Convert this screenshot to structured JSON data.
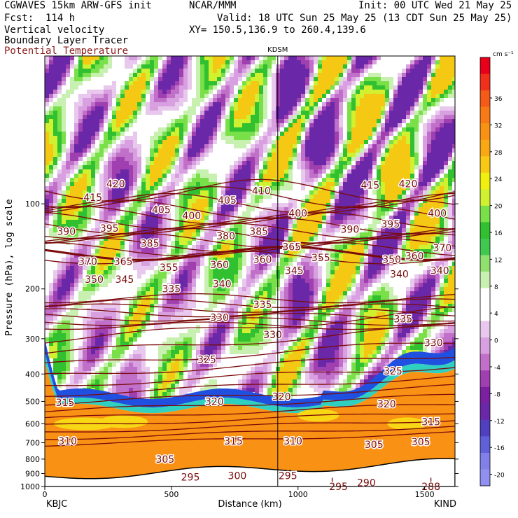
{
  "header": {
    "line1_left": "CGWAVES 15km ARW-GFS init",
    "line1_mid": "NCAR/MMM",
    "line1_right": "Init: 00 UTC Wed 21 May 25",
    "line2_left": "Fcst:  114 h",
    "line2_right": "Valid: 18 UTC Sun 25 May 25 (13 CDT Sun 25 May 25)",
    "line3_left": "Vertical velocity",
    "line3_right": "XY= 150.5,136.9 to 260.4,139.6",
    "line4_left": "Boundary Layer Tracer",
    "line5_left": "Potential Temperature"
  },
  "colors": {
    "potential_temperature": "#7a0a0a",
    "title_red": "#8b1a1a"
  },
  "chart_data": {
    "type": "heatmap",
    "title": "KDSM",
    "ylabel": "Pressure (hPa), log scale",
    "xlabel": "Distance (km)",
    "y_scale": "log",
    "ylim": [
      1000,
      30
    ],
    "xlim": [
      0,
      1620
    ],
    "x_ticks": [
      0,
      500,
      1000,
      1500
    ],
    "x_tick_labels": [
      "0",
      "500",
      "1000",
      "1500"
    ],
    "y_ticks": [
      100,
      200,
      300,
      400,
      500,
      600,
      700,
      800,
      900,
      1000
    ],
    "y_tick_labels": [
      "100",
      "200",
      "300",
      "400",
      "500",
      "600",
      "700",
      "800",
      "900",
      "1000"
    ],
    "endpoints": {
      "left": "KBJC",
      "right": "KIND"
    },
    "marker_station": {
      "name": "KDSM",
      "distance_km": 920
    },
    "colorbar": {
      "units": "cm s⁻¹",
      "tick_labels": [
        "36",
        "32",
        "28",
        "24",
        "20",
        "16",
        "12",
        "8",
        "4",
        "0",
        "-4",
        "-8",
        "-12",
        "-16",
        "-20"
      ],
      "colors": [
        "#e8001a",
        "#f0301a",
        "#f55a18",
        "#f77a16",
        "#f99214",
        "#f9a814",
        "#f8c814",
        "#f0f010",
        "#d0f030",
        "#7ae04a",
        "#30c030",
        "#40c850",
        "#90e070",
        "#c8f0b0",
        "#ffffff",
        "#ffffff",
        "#e8c8ec",
        "#d8a0e0",
        "#c070c8",
        "#a040b0",
        "#7a20a0",
        "#6a28a8",
        "#5040c0",
        "#6060d8",
        "#8080e8",
        "#9090f0"
      ]
    },
    "theta_contour_labels": [
      {
        "v": "420",
        "x": 280,
        "p": 85
      },
      {
        "v": "415",
        "x": 190,
        "p": 95
      },
      {
        "v": "405",
        "x": 460,
        "p": 105
      },
      {
        "v": "400",
        "x": 580,
        "p": 110
      },
      {
        "v": "405",
        "x": 720,
        "p": 97
      },
      {
        "v": "410",
        "x": 855,
        "p": 90
      },
      {
        "v": "415",
        "x": 1285,
        "p": 86
      },
      {
        "v": "420",
        "x": 1435,
        "p": 85
      },
      {
        "v": "400",
        "x": 1550,
        "p": 108
      },
      {
        "v": "395",
        "x": 1365,
        "p": 118
      },
      {
        "v": "390",
        "x": 1205,
        "p": 123
      },
      {
        "v": "400",
        "x": 1000,
        "p": 108
      },
      {
        "v": "390",
        "x": 85,
        "p": 125
      },
      {
        "v": "395",
        "x": 255,
        "p": 122
      },
      {
        "v": "385",
        "x": 415,
        "p": 138
      },
      {
        "v": "380",
        "x": 715,
        "p": 130
      },
      {
        "v": "385",
        "x": 845,
        "p": 125
      },
      {
        "v": "365",
        "x": 975,
        "p": 142
      },
      {
        "v": "370",
        "x": 1570,
        "p": 143
      },
      {
        "v": "370",
        "x": 170,
        "p": 160
      },
      {
        "v": "365",
        "x": 310,
        "p": 160
      },
      {
        "v": "355",
        "x": 490,
        "p": 168
      },
      {
        "v": "360",
        "x": 690,
        "p": 164
      },
      {
        "v": "360",
        "x": 860,
        "p": 157
      },
      {
        "v": "355",
        "x": 1090,
        "p": 155
      },
      {
        "v": "350",
        "x": 1370,
        "p": 157
      },
      {
        "v": "360",
        "x": 1460,
        "p": 153
      },
      {
        "v": "350",
        "x": 195,
        "p": 185
      },
      {
        "v": "345",
        "x": 315,
        "p": 185
      },
      {
        "v": "345",
        "x": 985,
        "p": 172
      },
      {
        "v": "340",
        "x": 1400,
        "p": 177
      },
      {
        "v": "340",
        "x": 1560,
        "p": 172
      },
      {
        "v": "335",
        "x": 500,
        "p": 200
      },
      {
        "v": "340",
        "x": 700,
        "p": 192
      },
      {
        "v": "335",
        "x": 860,
        "p": 227
      },
      {
        "v": "330",
        "x": 690,
        "p": 252
      },
      {
        "v": "335",
        "x": 1415,
        "p": 255
      },
      {
        "v": "330",
        "x": 900,
        "p": 290
      },
      {
        "v": "330",
        "x": 1535,
        "p": 310
      },
      {
        "v": "325",
        "x": 640,
        "p": 355
      },
      {
        "v": "325",
        "x": 1375,
        "p": 390
      },
      {
        "v": "320",
        "x": 670,
        "p": 500
      },
      {
        "v": "320",
        "x": 935,
        "p": 480
      },
      {
        "v": "320",
        "x": 1350,
        "p": 510
      },
      {
        "v": "315",
        "x": 80,
        "p": 505
      },
      {
        "v": "315",
        "x": 1525,
        "p": 590
      },
      {
        "v": "310",
        "x": 90,
        "p": 690
      },
      {
        "v": "315",
        "x": 745,
        "p": 690
      },
      {
        "v": "310",
        "x": 980,
        "p": 690
      },
      {
        "v": "305",
        "x": 1300,
        "p": 710
      },
      {
        "v": "305",
        "x": 1485,
        "p": 695
      },
      {
        "v": "305",
        "x": 475,
        "p": 800
      },
      {
        "v": "295",
        "x": 575,
        "p": 925
      },
      {
        "v": "300",
        "x": 760,
        "p": 915
      },
      {
        "v": "295",
        "x": 960,
        "p": 915
      },
      {
        "v": "290",
        "x": 1270,
        "p": 970
      },
      {
        "v": "L",
        "x": 1140,
        "p": 960
      },
      {
        "v": "L",
        "x": 1530,
        "p": 960
      },
      {
        "v": "295",
        "x": 1160,
        "p": 1000
      },
      {
        "v": "288",
        "x": 1525,
        "p": 1000
      }
    ]
  }
}
